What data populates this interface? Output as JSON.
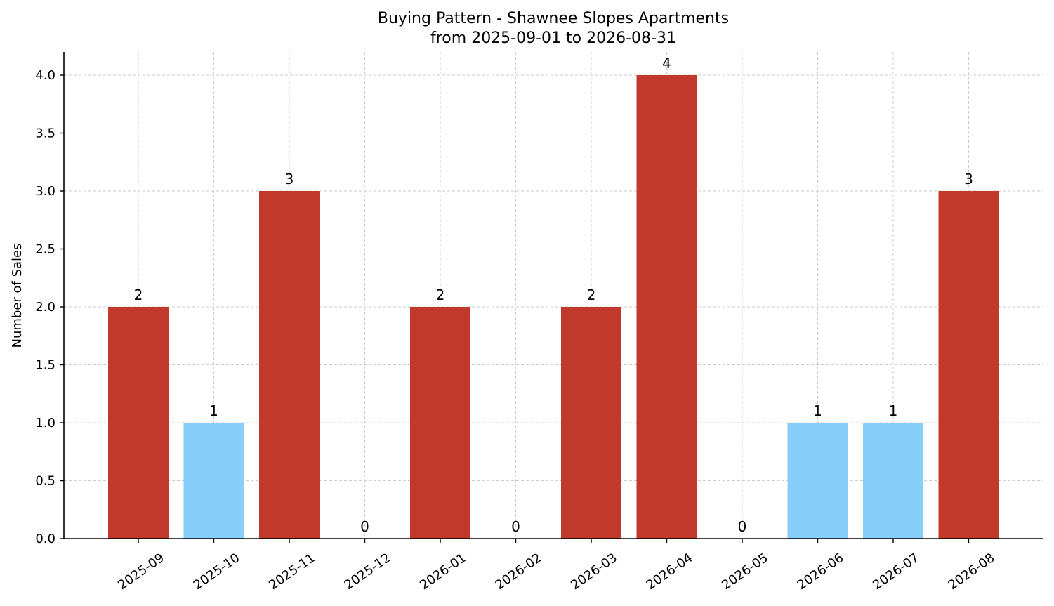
{
  "chart_data": {
    "type": "bar",
    "title": "Buying Pattern - Shawnee Slopes Apartments",
    "subtitle": "from 2025-09-01 to 2026-08-31",
    "xlabel": "",
    "ylabel": "Number of Sales",
    "categories": [
      "2025-09",
      "2025-10",
      "2025-11",
      "2025-12",
      "2026-01",
      "2026-02",
      "2026-03",
      "2026-04",
      "2026-05",
      "2026-06",
      "2026-07",
      "2026-08"
    ],
    "values": [
      2,
      1,
      3,
      0,
      2,
      0,
      2,
      4,
      0,
      1,
      1,
      3
    ],
    "data_labels": [
      "2",
      "1",
      "3",
      "0",
      "2",
      "0",
      "2",
      "4",
      "0",
      "1",
      "1",
      "3"
    ],
    "bar_colors": [
      "#c0392b",
      "#87cefa",
      "#c0392b",
      "#c0392b",
      "#c0392b",
      "#c0392b",
      "#c0392b",
      "#c0392b",
      "#c0392b",
      "#87cefa",
      "#87cefa",
      "#c0392b"
    ],
    "ylim": [
      0,
      4.2
    ],
    "yticks": [
      "0.0",
      "0.5",
      "1.0",
      "1.5",
      "2.0",
      "2.5",
      "3.0",
      "3.5",
      "4.0"
    ],
    "ytick_values": [
      0,
      0.5,
      1.0,
      1.5,
      2.0,
      2.5,
      3.0,
      3.5,
      4.0
    ],
    "grid": true,
    "xtick_rotation": "rotated-35"
  }
}
